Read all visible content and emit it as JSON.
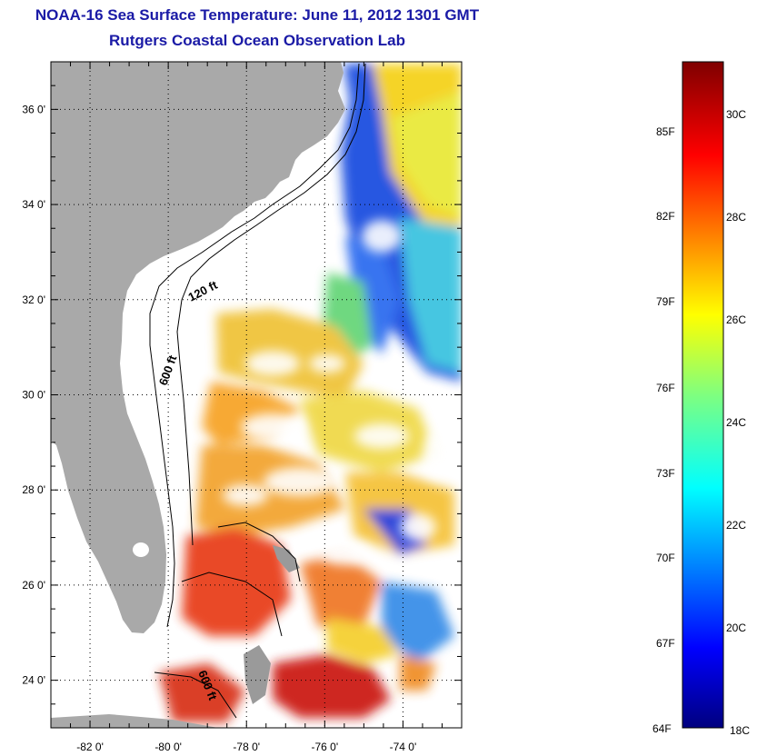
{
  "header": {
    "title": "NOAA-16 Sea Surface Temperature:  June 11, 2012 1301 GMT",
    "subtitle": "Rutgers Coastal Ocean Observation Lab"
  },
  "map": {
    "lon_range": [
      -83,
      -72.5
    ],
    "lat_range": [
      23,
      37
    ],
    "lon_ticks": [
      "-82 0'",
      "-80 0'",
      "-78 0'",
      "-76 0'",
      "-74 0'"
    ],
    "lat_ticks": [
      "24 0'",
      "26 0'",
      "28 0'",
      "30 0'",
      "32 0'",
      "34 0'",
      "36 0'"
    ],
    "grid": "dotted",
    "land_color": "#a9a9a9",
    "contour_labels": [
      "120 ft",
      "600 ft",
      "600 ft"
    ]
  },
  "colorbar": {
    "fahrenheit_labels": [
      "85F",
      "82F",
      "79F",
      "76F",
      "73F",
      "70F",
      "67F",
      "64F"
    ],
    "celsius_labels": [
      "30C",
      "28C",
      "26C",
      "24C",
      "22C",
      "20C",
      "18C"
    ],
    "range_c": [
      18,
      31.6
    ],
    "colormap": "jet"
  }
}
